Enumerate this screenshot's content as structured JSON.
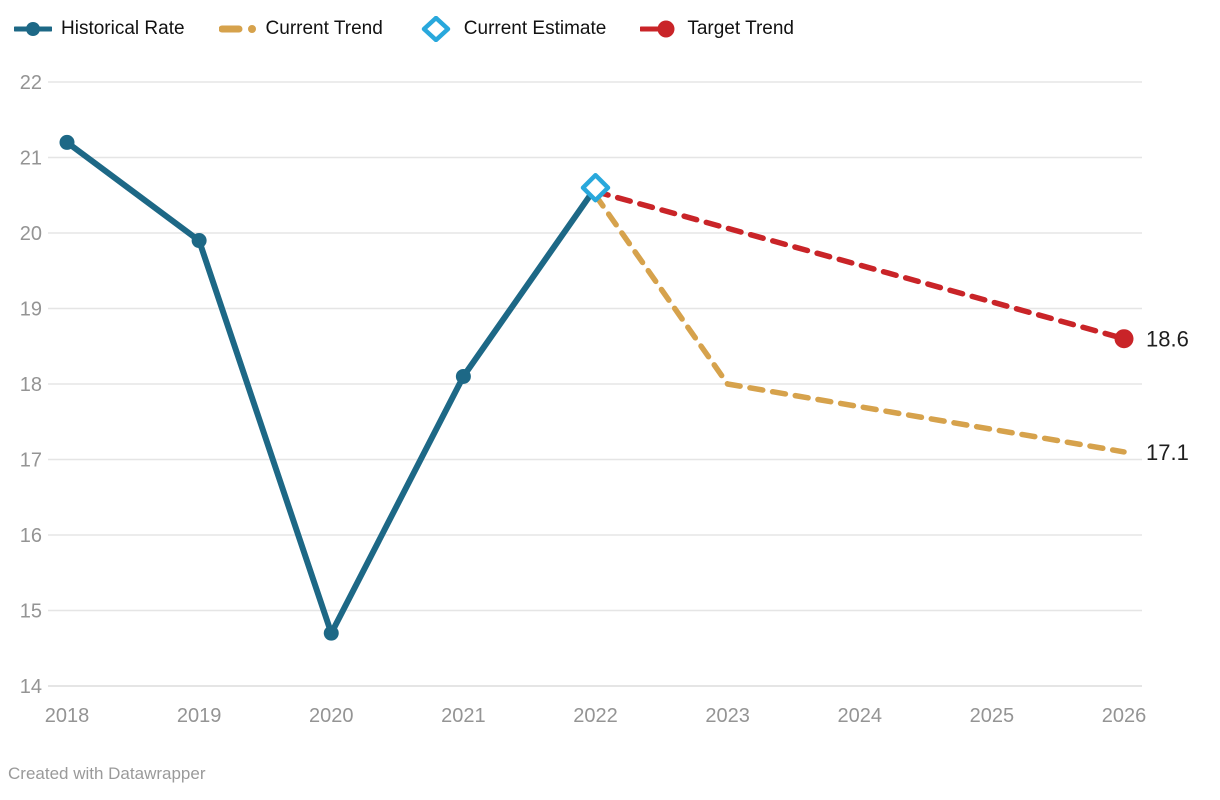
{
  "footer": {
    "credit": "Created with Datawrapper"
  },
  "colors": {
    "background": "#ffffff",
    "grid": "#e5e5e5",
    "axis_text": "#949494",
    "legend_text": "#121212",
    "end_label_text": "#1f1f1f",
    "footer_text": "#9a9a9a"
  },
  "chart_data": {
    "type": "line",
    "title": "",
    "xlabel": "",
    "ylabel": "",
    "x_tick_labels": [
      "2018",
      "2019",
      "2020",
      "2021",
      "2022",
      "2023",
      "2024",
      "2025",
      "2026"
    ],
    "x_ticks": [
      2018,
      2019,
      2020,
      2021,
      2022,
      2023,
      2024,
      2025,
      2026
    ],
    "y_ticks": [
      14,
      15,
      16,
      17,
      18,
      19,
      20,
      21,
      22
    ],
    "y_tick_labels": [
      "14",
      "15",
      "16",
      "17",
      "18",
      "19",
      "20",
      "21",
      "22"
    ],
    "xlim": [
      2018,
      2026
    ],
    "ylim": [
      14,
      22.3
    ],
    "grid": "horizontal",
    "legend_position": "top",
    "series": [
      {
        "name": "Historical Rate",
        "color": "#1d6886",
        "line_style": "solid",
        "line_width": 6,
        "marker": "circle",
        "legend_marker": "line-dot",
        "points": [
          [
            2018,
            21.2
          ],
          [
            2019,
            19.9
          ],
          [
            2020,
            14.7
          ],
          [
            2021,
            18.1
          ],
          [
            2022,
            20.6
          ]
        ]
      },
      {
        "name": "Current Trend",
        "color": "#d6a24c",
        "line_style": "dashed",
        "line_width": 5.5,
        "marker": "none",
        "legend_marker": "dash-dot",
        "points": [
          [
            2022,
            20.5
          ],
          [
            2023,
            18.0
          ],
          [
            2024,
            17.7
          ],
          [
            2025,
            17.4
          ],
          [
            2026,
            17.1
          ]
        ],
        "end_label": "17.1"
      },
      {
        "name": "Current Estimate",
        "color": "#29a8dc",
        "line_style": "none",
        "line_width": 0,
        "marker": "diamond-open",
        "legend_marker": "diamond",
        "points": [
          [
            2022,
            20.6
          ]
        ]
      },
      {
        "name": "Target Trend",
        "color": "#c92428",
        "line_style": "dashed",
        "line_width": 5.5,
        "marker": "end-circle",
        "legend_marker": "line-enddot",
        "points": [
          [
            2022,
            20.55
          ],
          [
            2026,
            18.6
          ]
        ],
        "end_label": "18.6"
      }
    ]
  }
}
